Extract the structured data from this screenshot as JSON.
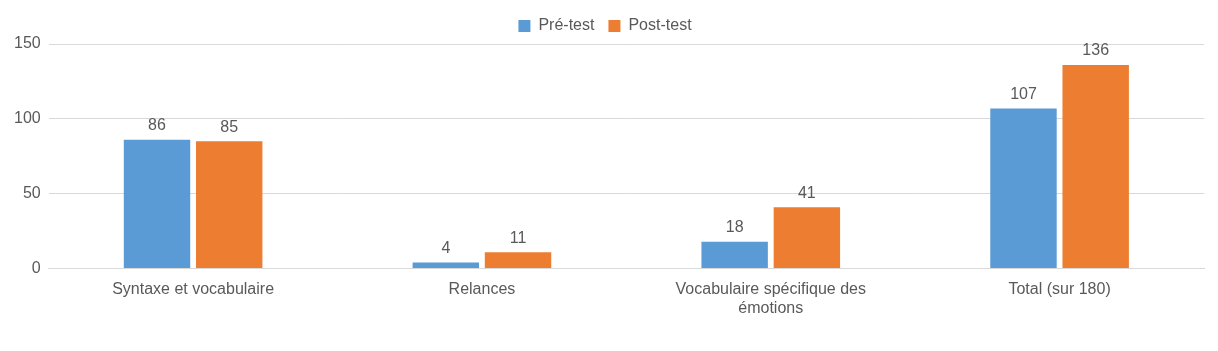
{
  "chart_data": {
    "type": "bar",
    "categories": [
      "Syntaxe et vocabulaire",
      "Relances",
      "Vocabulaire spécifique des émotions",
      "Total (sur 180)"
    ],
    "series": [
      {
        "name": "Pré-test",
        "color": "#5b9bd5",
        "values": [
          86,
          4,
          18,
          107
        ]
      },
      {
        "name": "Post-test",
        "color": "#ed7d31",
        "values": [
          85,
          11,
          41,
          136
        ]
      }
    ],
    "ylim": [
      0,
      150
    ],
    "yticks": [
      0,
      50,
      100,
      150
    ],
    "grid": true,
    "legend": "top",
    "data_labels": true
  }
}
